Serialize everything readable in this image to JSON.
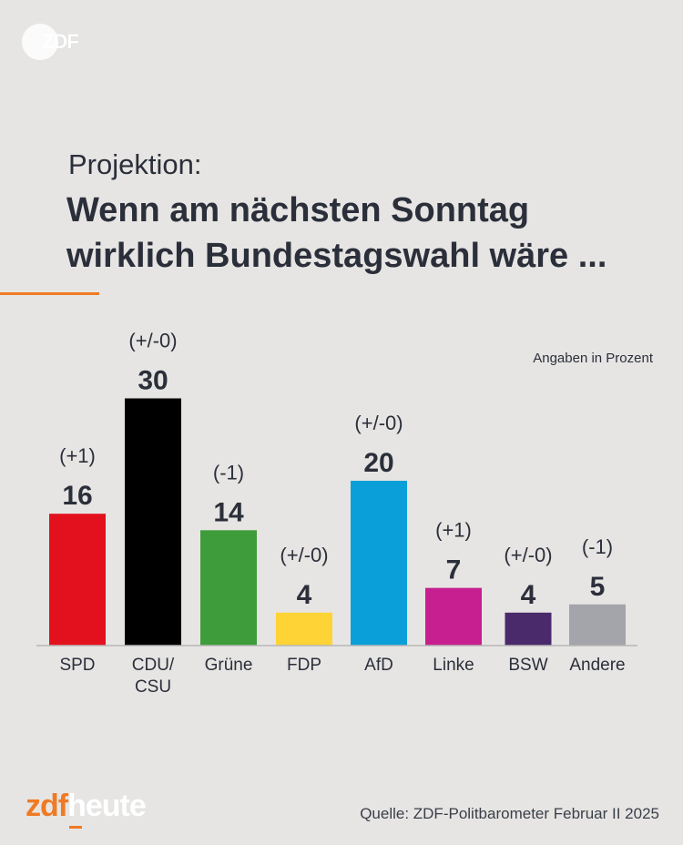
{
  "brand": {
    "top_logo": "ZDF",
    "footer_logo_zdf": "zdf",
    "footer_logo_heute": "heute"
  },
  "header": {
    "subtitle": "Projektion:",
    "title": "Wenn am nächsten Sonntag wirklich Bundestagswahl wäre ..."
  },
  "unit_note": "Angaben in Prozent",
  "source": "Quelle: ZDF-Politbarometer Februar II 2025",
  "chart_data": {
    "type": "bar",
    "title": "Wenn am nächsten Sonntag wirklich Bundestagswahl wäre ...",
    "subtitle": "Projektion:",
    "ylabel": "Angaben in Prozent",
    "xlabel": "",
    "ylim": [
      0,
      30
    ],
    "grid": false,
    "categories": [
      "SPD",
      "CDU/\nCSU",
      "Grüne",
      "FDP",
      "AfD",
      "Linke",
      "BSW",
      "Andere"
    ],
    "values": [
      16,
      30,
      14,
      4,
      20,
      7,
      4,
      5
    ],
    "changes": [
      "(+1)",
      "(+/-0)",
      "(-1)",
      "(+/-0)",
      "(+/-0)",
      "(+1)",
      "(+/-0)",
      "(-1)"
    ],
    "colors": [
      "#e3101d",
      "#000000",
      "#3f9c3b",
      "#fdd335",
      "#0a9fd8",
      "#c71f8f",
      "#4a2a6b",
      "#a3a5aa"
    ]
  }
}
